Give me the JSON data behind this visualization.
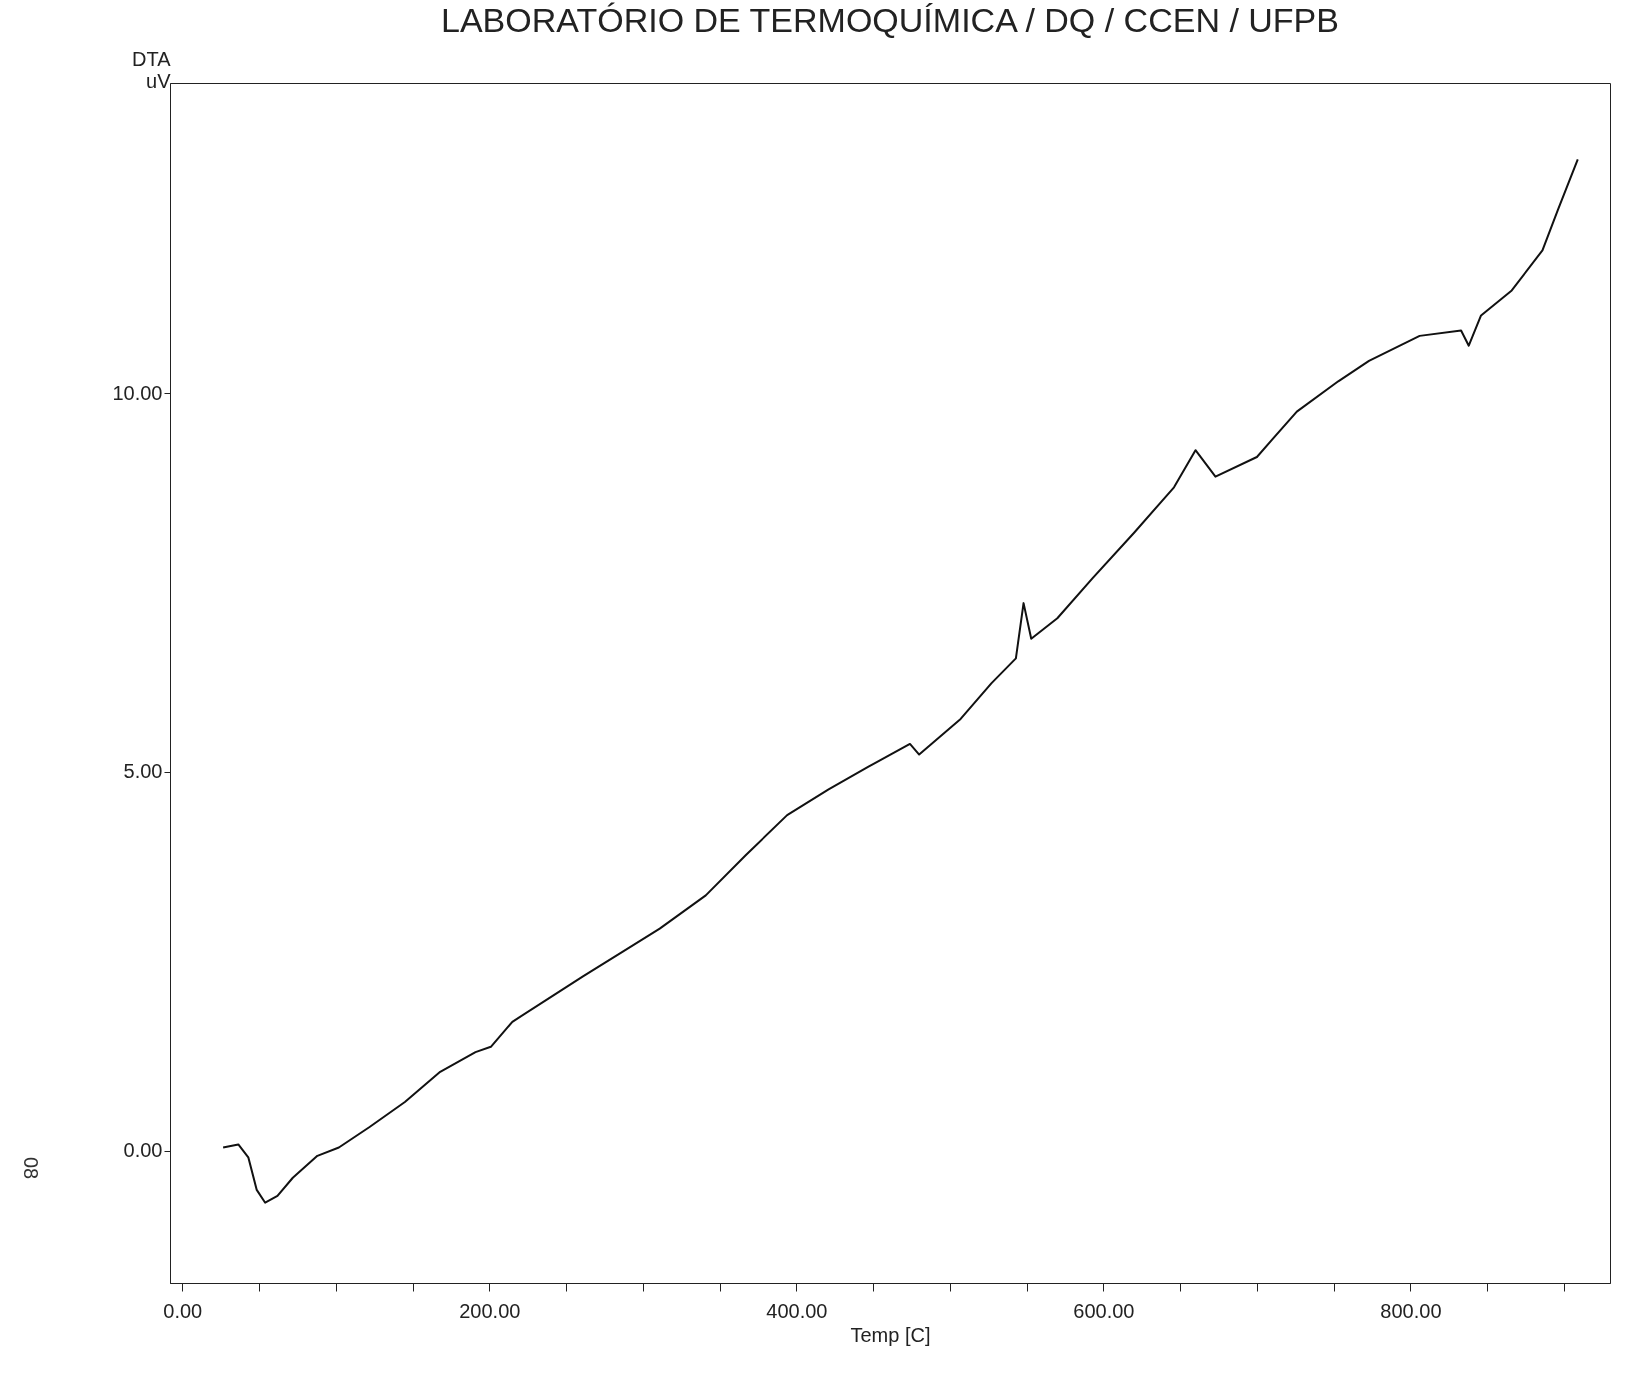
{
  "chart_data": {
    "type": "line",
    "title": "LABORATÓRIO DE TERMOQUÍMICA / DQ / CCEN / UFPB",
    "xlabel": "Temp [C]",
    "ylabel": "DTA\nuV",
    "annotations": [
      "08"
    ],
    "x": [
      26.6,
      36.5,
      43,
      48.5,
      54,
      62,
      72,
      88,
      102,
      122,
      145,
      168,
      191,
      201,
      215,
      241,
      261,
      288,
      311,
      341,
      367,
      394,
      421,
      447,
      474,
      480,
      507,
      527,
      543,
      548,
      553,
      570,
      593,
      620,
      646,
      660,
      673,
      700,
      726,
      753,
      773,
      806,
      833,
      838,
      846,
      866,
      886,
      896,
      909
    ],
    "series": [
      {
        "color": "#111111",
        "values": [
          0.04,
          0.08,
          -0.09,
          -0.52,
          -0.69,
          -0.6,
          -0.36,
          -0.07,
          0.04,
          0.31,
          0.64,
          1.04,
          1.3,
          1.37,
          1.7,
          2.04,
          2.3,
          2.64,
          2.93,
          3.37,
          3.9,
          4.43,
          4.77,
          5.07,
          5.37,
          5.23,
          5.7,
          6.17,
          6.5,
          7.23,
          6.76,
          7.03,
          7.56,
          8.16,
          8.76,
          9.25,
          8.9,
          9.16,
          9.76,
          10.16,
          10.43,
          10.76,
          10.83,
          10.63,
          11.03,
          11.36,
          11.89,
          12.42,
          13.09
        ]
      }
    ],
    "xlim": [
      -8,
      930
    ],
    "ylim": [
      -1.75,
      14.1
    ],
    "xticks": [
      {
        "value": 0,
        "label": "0.00"
      },
      {
        "value": 50,
        "label": null
      },
      {
        "value": 100,
        "label": null
      },
      {
        "value": 150,
        "label": null
      },
      {
        "value": 200,
        "label": "200.00"
      },
      {
        "value": 250,
        "label": null
      },
      {
        "value": 300,
        "label": null
      },
      {
        "value": 350,
        "label": null
      },
      {
        "value": 400,
        "label": "400.00"
      },
      {
        "value": 450,
        "label": null
      },
      {
        "value": 500,
        "label": null
      },
      {
        "value": 550,
        "label": null
      },
      {
        "value": 600,
        "label": "600.00"
      },
      {
        "value": 650,
        "label": null
      },
      {
        "value": 700,
        "label": null
      },
      {
        "value": 750,
        "label": null
      },
      {
        "value": 800,
        "label": "800.00"
      },
      {
        "value": 850,
        "label": null
      },
      {
        "value": 900,
        "label": null
      }
    ],
    "yticks": [
      {
        "value": 0,
        "label": "0.00"
      },
      {
        "value": 5,
        "label": "5.00"
      },
      {
        "value": 10,
        "label": "10.00"
      }
    ],
    "grid": false,
    "marker": "none",
    "line_style": "solid"
  }
}
